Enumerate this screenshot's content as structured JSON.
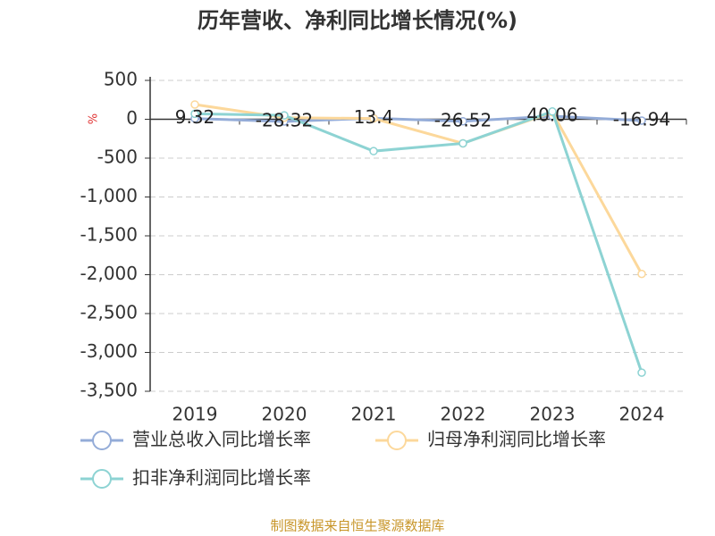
{
  "chart_data": {
    "type": "line",
    "title": "历年营收、净利同比增长情况(%)",
    "y_label": "%",
    "categories": [
      "2019",
      "2020",
      "2021",
      "2022",
      "2023",
      "2024"
    ],
    "series": [
      {
        "name": "营业总收入同比增长率",
        "color": "#94acd8",
        "values": [
          9.32,
          -28.32,
          13.4,
          -26.52,
          40.06,
          -16.94
        ],
        "data_labels": true
      },
      {
        "name": "归母净利润同比增长率",
        "color": "#fcd89b",
        "values": [
          190,
          20,
          10,
          -310,
          90,
          -1990
        ]
      },
      {
        "name": "扣非净利润同比增长率",
        "color": "#8dd3d3",
        "values": [
          70,
          50,
          -410,
          -310,
          100,
          -3260
        ]
      }
    ],
    "ylim": [
      -3500,
      500
    ],
    "yticks": [
      {
        "value": -3500,
        "label": "-3,500"
      },
      {
        "value": -3000,
        "label": "-3,000"
      },
      {
        "value": -2500,
        "label": "-2,500"
      },
      {
        "value": -2000,
        "label": "-2,000"
      },
      {
        "value": -1500,
        "label": "-1,500"
      },
      {
        "value": -1000,
        "label": "-1,000"
      },
      -500,
      0,
      500
    ],
    "grid": true,
    "source": "制图数据来自恒生聚源数据库"
  }
}
